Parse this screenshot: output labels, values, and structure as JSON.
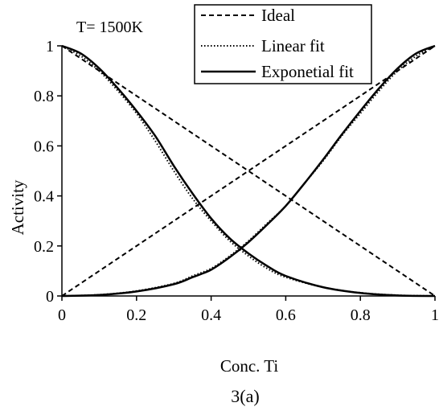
{
  "chart_data": {
    "type": "line",
    "annotation": "T= 1500K",
    "xlabel": "Conc. Ti",
    "ylabel": "Activity",
    "caption": "3(a)",
    "xlim": [
      0,
      1
    ],
    "ylim": [
      0,
      1
    ],
    "x_ticks": [
      "0",
      "0.2",
      "0.4",
      "0.6",
      "0.8",
      "1"
    ],
    "y_ticks": [
      "0",
      "0.2",
      "0.4",
      "0.6",
      "0.8",
      "1"
    ],
    "grid": false,
    "legend_position": "top-right",
    "series": [
      {
        "name": "Ideal",
        "component": "Ti",
        "style": "dashed",
        "x": [
          0,
          1
        ],
        "y": [
          0,
          1
        ]
      },
      {
        "name": "Ideal",
        "component": "other",
        "style": "dashed",
        "x": [
          0,
          1
        ],
        "y": [
          1,
          0
        ]
      },
      {
        "name": "Linear fit",
        "component": "Ti",
        "style": "dotted",
        "x": [
          0,
          0.1,
          0.2,
          0.3,
          0.35,
          0.4,
          0.45,
          0.5,
          0.55,
          0.6,
          0.65,
          0.7,
          0.75,
          0.8,
          0.85,
          0.9,
          0.95,
          1.0
        ],
        "y": [
          0,
          0.005,
          0.02,
          0.05,
          0.08,
          0.11,
          0.16,
          0.22,
          0.29,
          0.36,
          0.45,
          0.54,
          0.64,
          0.73,
          0.82,
          0.9,
          0.96,
          1.0
        ]
      },
      {
        "name": "Linear fit",
        "component": "other",
        "style": "dotted",
        "x": [
          0,
          0.05,
          0.1,
          0.15,
          0.2,
          0.25,
          0.3,
          0.35,
          0.4,
          0.45,
          0.5,
          0.55,
          0.6,
          0.7,
          0.8,
          0.9,
          1.0
        ],
        "y": [
          1.0,
          0.96,
          0.9,
          0.82,
          0.73,
          0.62,
          0.5,
          0.39,
          0.3,
          0.22,
          0.16,
          0.11,
          0.075,
          0.035,
          0.013,
          0.003,
          0
        ]
      },
      {
        "name": "Exponetial fit",
        "component": "Ti",
        "style": "solid",
        "x": [
          0,
          0.1,
          0.2,
          0.3,
          0.35,
          0.4,
          0.45,
          0.5,
          0.55,
          0.6,
          0.65,
          0.7,
          0.75,
          0.8,
          0.85,
          0.9,
          0.95,
          1.0
        ],
        "y": [
          0,
          0.004,
          0.018,
          0.047,
          0.075,
          0.105,
          0.155,
          0.215,
          0.285,
          0.36,
          0.45,
          0.545,
          0.645,
          0.74,
          0.83,
          0.91,
          0.97,
          1.0
        ]
      },
      {
        "name": "Exponetial fit",
        "component": "other",
        "style": "solid",
        "x": [
          0,
          0.05,
          0.1,
          0.15,
          0.2,
          0.25,
          0.3,
          0.35,
          0.4,
          0.45,
          0.5,
          0.55,
          0.6,
          0.7,
          0.8,
          0.9,
          1.0
        ],
        "y": [
          1.0,
          0.97,
          0.91,
          0.83,
          0.74,
          0.64,
          0.52,
          0.41,
          0.31,
          0.23,
          0.17,
          0.12,
          0.08,
          0.035,
          0.012,
          0.002,
          0
        ]
      }
    ],
    "legend": [
      {
        "label": "Ideal",
        "style": "dashed"
      },
      {
        "label": "Linear fit",
        "style": "dotted"
      },
      {
        "label": "Exponetial fit",
        "style": "solid"
      }
    ]
  }
}
